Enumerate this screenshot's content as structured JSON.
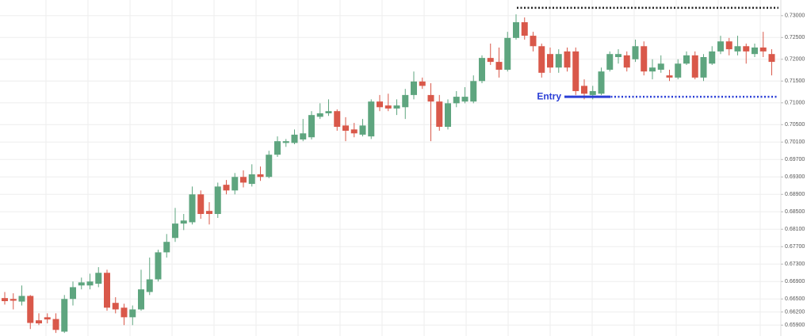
{
  "chart_data": {
    "type": "candlestick",
    "ylim": [
      0.6565,
      0.7336
    ],
    "yticks": [
      {
        "value": 0.73,
        "label": "0.73000"
      },
      {
        "value": 0.725,
        "label": "0.72500"
      },
      {
        "value": 0.72,
        "label": "0.72000"
      },
      {
        "value": 0.715,
        "label": "0.71500"
      },
      {
        "value": 0.71,
        "label": "0.71000"
      },
      {
        "value": 0.705,
        "label": "0.70500"
      },
      {
        "value": 0.701,
        "label": "0.70100"
      },
      {
        "value": 0.697,
        "label": "0.69700"
      },
      {
        "value": 0.693,
        "label": "0.69300"
      },
      {
        "value": 0.689,
        "label": "0.68900"
      },
      {
        "value": 0.685,
        "label": "0.68500"
      },
      {
        "value": 0.681,
        "label": "0.68100"
      },
      {
        "value": 0.677,
        "label": "0.67700"
      },
      {
        "value": 0.673,
        "label": "0.67300"
      },
      {
        "value": 0.669,
        "label": "0.66900"
      },
      {
        "value": 0.665,
        "label": "0.66500"
      },
      {
        "value": 0.662,
        "label": "0.66200"
      },
      {
        "value": 0.659,
        "label": "0.65900"
      }
    ],
    "grid": true,
    "up_color": "#5ea57f",
    "down_color": "#d9584a",
    "open": [
      0.6652,
      0.665,
      0.6644,
      0.6657,
      0.6601,
      0.6608,
      0.6604,
      0.6575,
      0.665,
      0.6681,
      0.6681,
      0.6685,
      0.671,
      0.6641,
      0.663,
      0.6608,
      0.6626,
      0.6666,
      0.6695,
      0.6757,
      0.679,
      0.6823,
      0.6826,
      0.689,
      0.6852,
      0.6845,
      0.6912,
      0.6899,
      0.693,
      0.6914,
      0.6936,
      0.693,
      0.6981,
      0.7008,
      0.7008,
      0.7016,
      0.7021,
      0.7068,
      0.7076,
      0.7081,
      0.7048,
      0.7039,
      0.7027,
      0.7023,
      0.7103,
      0.7094,
      0.7087,
      0.709,
      0.7118,
      0.7149,
      0.7118,
      0.7103,
      0.7045,
      0.7099,
      0.7103,
      0.7103,
      0.715,
      0.7203,
      0.7194,
      0.7176,
      0.7249,
      0.7285,
      0.7254,
      0.723,
      0.7212,
      0.7181,
      0.7218,
      0.7218,
      0.7139,
      0.7118,
      0.7121,
      0.7176,
      0.7205,
      0.7209,
      0.72,
      0.723,
      0.7172,
      0.7176,
      0.7163,
      0.7158,
      0.719,
      0.7209,
      0.7158,
      0.719,
      0.7218,
      0.7241,
      0.7218,
      0.723,
      0.7212,
      0.7227,
      0.7212
    ],
    "high": [
      0.6666,
      0.6663,
      0.6681,
      0.6659,
      0.6617,
      0.6617,
      0.6617,
      0.6659,
      0.669,
      0.6699,
      0.6708,
      0.6723,
      0.6717,
      0.6654,
      0.6639,
      0.6635,
      0.6717,
      0.6745,
      0.6763,
      0.6799,
      0.6859,
      0.6845,
      0.6908,
      0.6899,
      0.6872,
      0.6917,
      0.6923,
      0.6939,
      0.6945,
      0.6959,
      0.6954,
      0.699,
      0.7023,
      0.7017,
      0.7039,
      0.7063,
      0.7081,
      0.7099,
      0.7108,
      0.7085,
      0.7067,
      0.7054,
      0.7063,
      0.7108,
      0.7118,
      0.7121,
      0.7108,
      0.7132,
      0.7172,
      0.7158,
      0.7145,
      0.7118,
      0.7108,
      0.7127,
      0.7136,
      0.7163,
      0.7209,
      0.7236,
      0.7227,
      0.7263,
      0.7303,
      0.7296,
      0.7263,
      0.7236,
      0.7227,
      0.7223,
      0.7227,
      0.7227,
      0.7154,
      0.7139,
      0.7181,
      0.7218,
      0.7223,
      0.7218,
      0.7245,
      0.7241,
      0.72,
      0.7209,
      0.7176,
      0.72,
      0.7218,
      0.7218,
      0.7212,
      0.723,
      0.7254,
      0.7249,
      0.7254,
      0.7236,
      0.7236,
      0.7263,
      0.7223
    ],
    "low": [
      0.6637,
      0.6626,
      0.6635,
      0.6581,
      0.659,
      0.6594,
      0.6572,
      0.6572,
      0.6635,
      0.6672,
      0.6672,
      0.6677,
      0.6623,
      0.6617,
      0.659,
      0.659,
      0.6623,
      0.6659,
      0.669,
      0.6745,
      0.6781,
      0.6808,
      0.6821,
      0.6834,
      0.6821,
      0.6836,
      0.689,
      0.689,
      0.6906,
      0.6908,
      0.6921,
      0.6927,
      0.6976,
      0.6999,
      0.7005,
      0.7012,
      0.7016,
      0.7063,
      0.707,
      0.7036,
      0.7012,
      0.7021,
      0.7023,
      0.7017,
      0.7081,
      0.7081,
      0.7072,
      0.7063,
      0.7108,
      0.7132,
      0.7012,
      0.7036,
      0.7039,
      0.709,
      0.7099,
      0.7099,
      0.7145,
      0.7187,
      0.7158,
      0.7172,
      0.7245,
      0.7245,
      0.7218,
      0.7158,
      0.7169,
      0.7169,
      0.7172,
      0.7118,
      0.7108,
      0.7108,
      0.7118,
      0.7172,
      0.719,
      0.7172,
      0.7194,
      0.7163,
      0.7154,
      0.7169,
      0.715,
      0.7154,
      0.7187,
      0.7154,
      0.715,
      0.7187,
      0.7212,
      0.7209,
      0.7209,
      0.719,
      0.7205,
      0.7205,
      0.7163
    ],
    "close": [
      0.6645,
      0.6646,
      0.6657,
      0.6595,
      0.6594,
      0.6603,
      0.6579,
      0.665,
      0.6677,
      0.6688,
      0.669,
      0.671,
      0.663,
      0.6626,
      0.6608,
      0.6626,
      0.6672,
      0.6695,
      0.6757,
      0.6781,
      0.6823,
      0.683,
      0.689,
      0.6845,
      0.6845,
      0.6908,
      0.6899,
      0.693,
      0.6917,
      0.6936,
      0.693,
      0.6981,
      0.7012,
      0.7012,
      0.7027,
      0.703,
      0.7072,
      0.7076,
      0.7081,
      0.7045,
      0.7036,
      0.703,
      0.7048,
      0.7103,
      0.709,
      0.7087,
      0.7094,
      0.7118,
      0.7149,
      0.7139,
      0.7103,
      0.7045,
      0.7099,
      0.7114,
      0.7114,
      0.715,
      0.7203,
      0.7194,
      0.7176,
      0.7249,
      0.7285,
      0.7254,
      0.723,
      0.7169,
      0.7181,
      0.7212,
      0.7181,
      0.7127,
      0.7121,
      0.7127,
      0.7172,
      0.7212,
      0.7212,
      0.7181,
      0.723,
      0.7172,
      0.7181,
      0.719,
      0.7158,
      0.719,
      0.7209,
      0.7158,
      0.7205,
      0.7218,
      0.7241,
      0.7223,
      0.723,
      0.7218,
      0.7227,
      0.7218,
      0.7194
    ],
    "levels": [
      {
        "value": 0.7318,
        "color": "#222222"
      },
      {
        "value": 0.7114,
        "color": "#2b3fd6",
        "label": "Entry"
      }
    ]
  }
}
